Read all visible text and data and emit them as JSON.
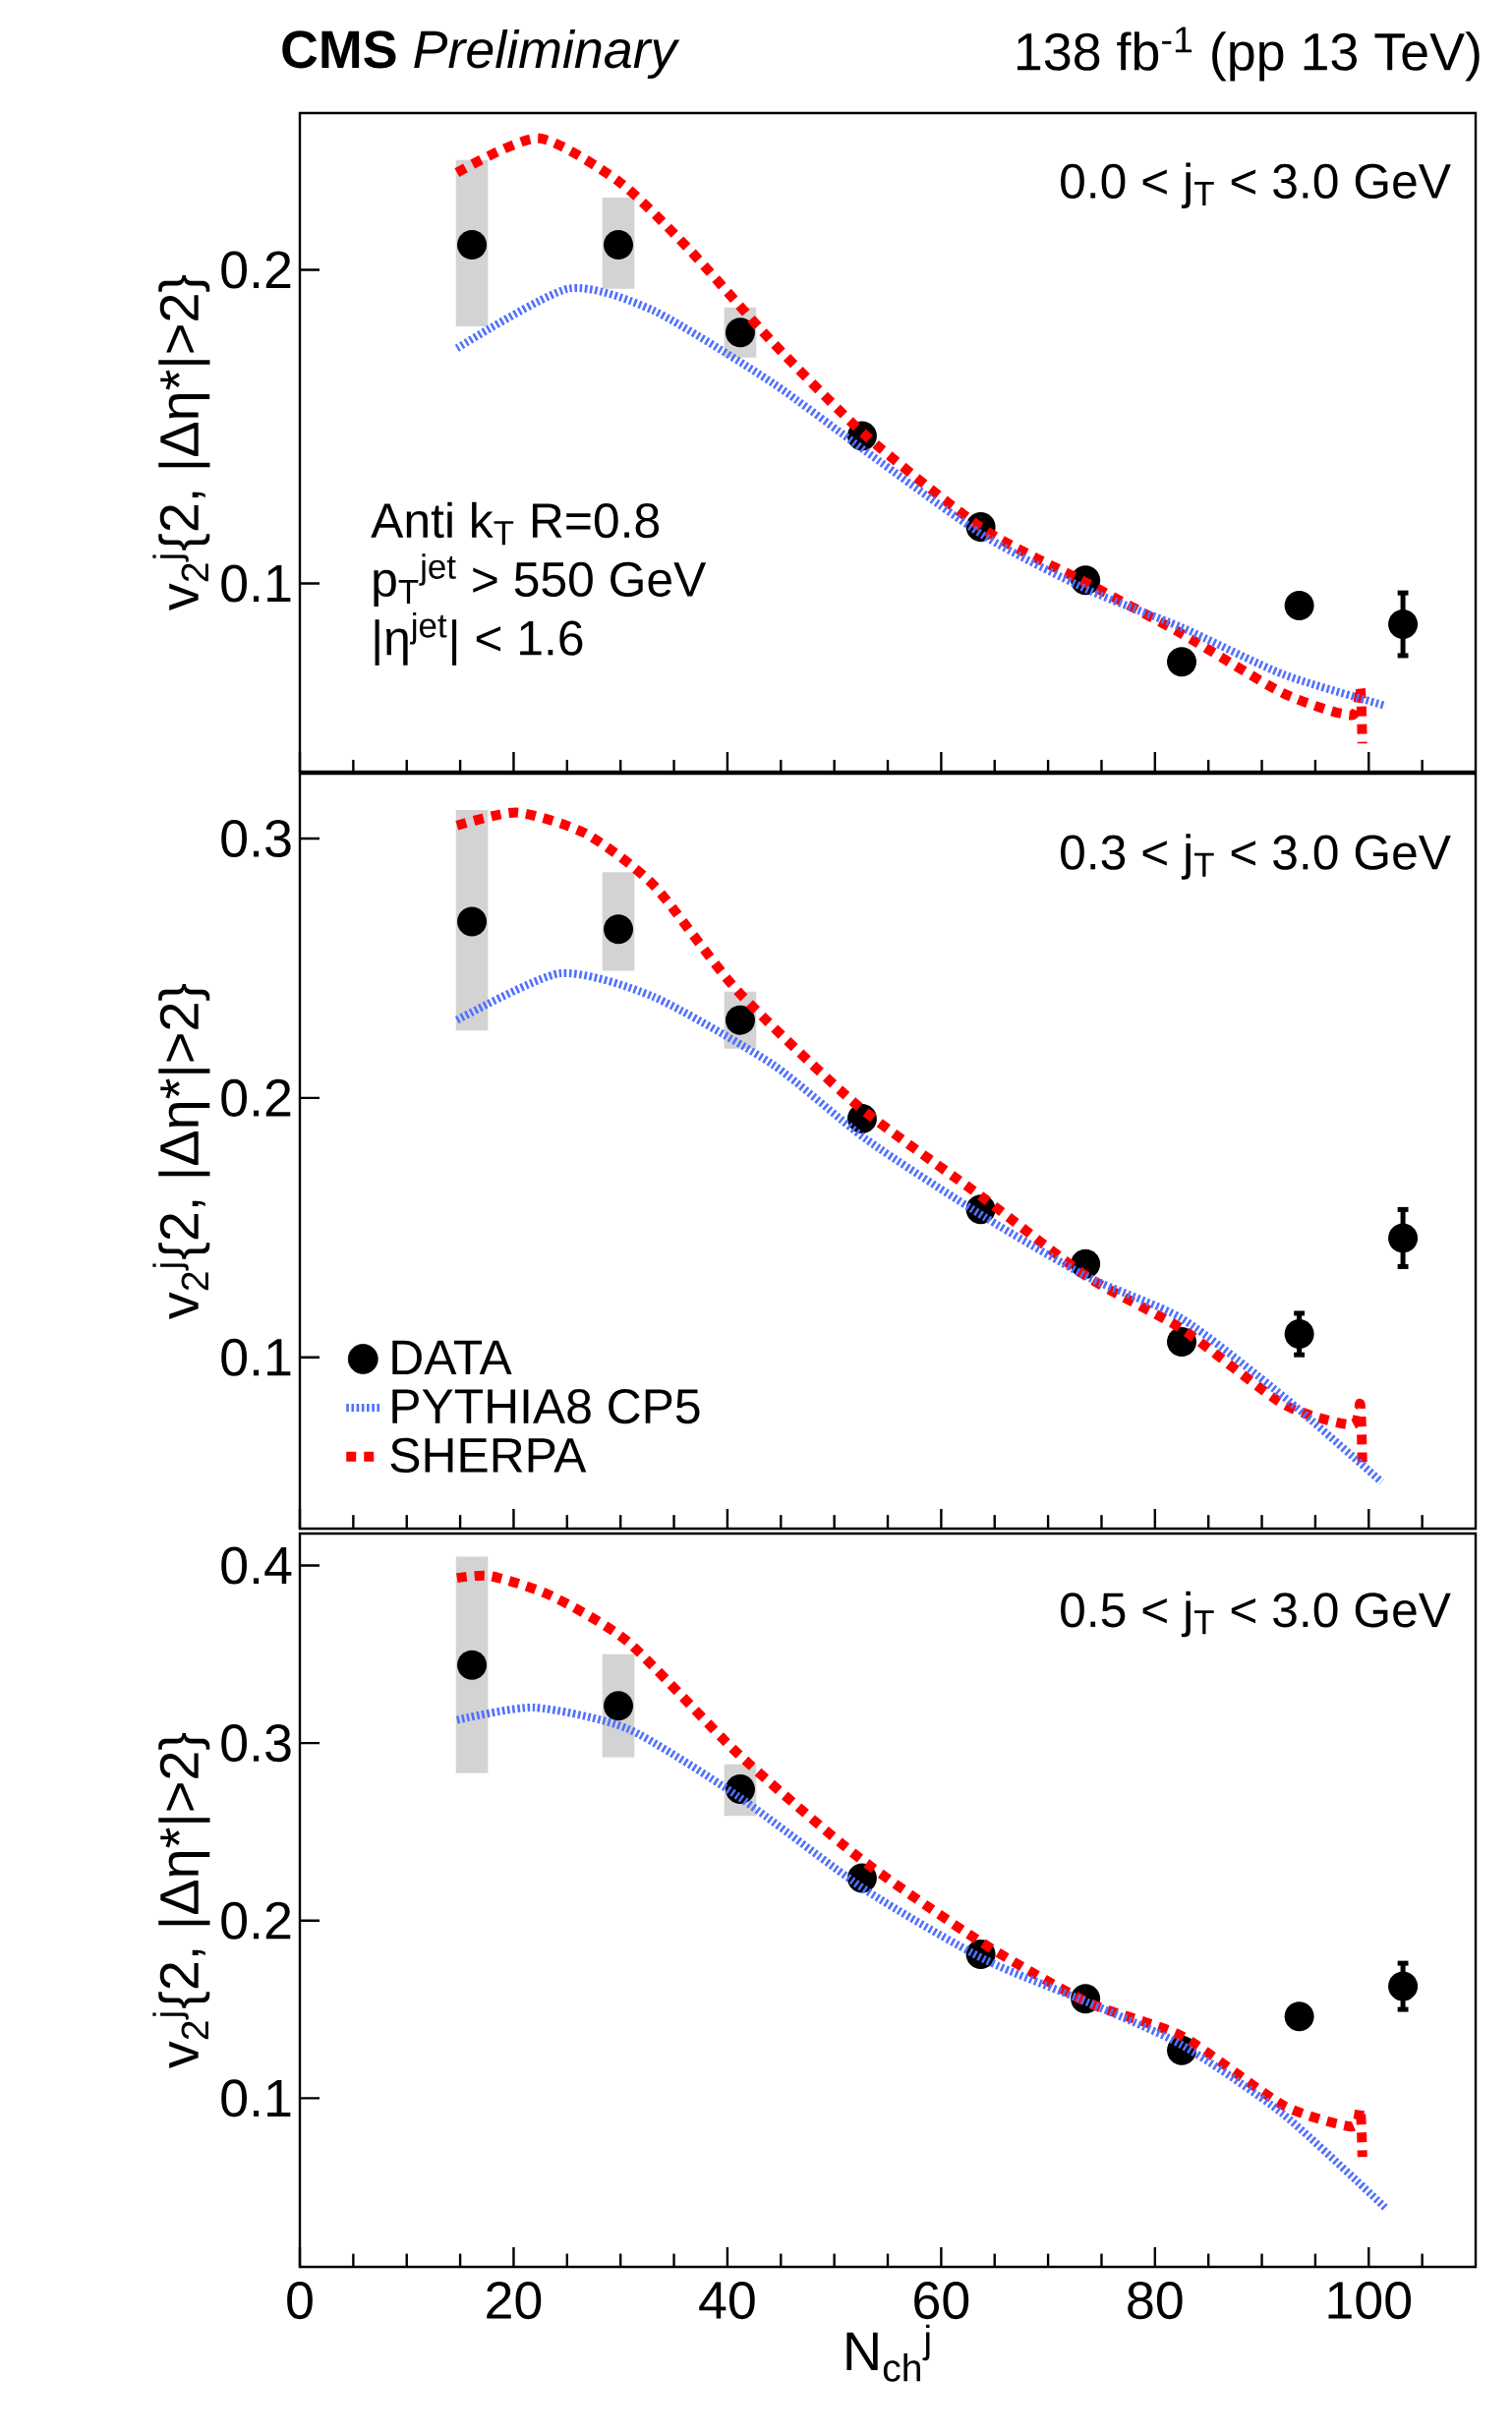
{
  "chart_data": [
    {
      "type": "scatter",
      "title": "**CMS** *Preliminary*",
      "subtitle": "138 fb$^{-1}$ (pp 13 TeV)",
      "ylabel": "v$_{2}$$^{j}${2, |Δη*|>2}",
      "annotations": [
        "0.0 < j$_{T}$ < 3.0 GeV",
        "Anti k$_{T}$ R=0.8",
        "p$_{T}$$^{jet}$ > 550 GeV",
        "|η$^{jet}$| < 1.6"
      ],
      "xlim": [
        0,
        110
      ],
      "xticks": [
        0,
        {
          "value": 5,
          "label": null
        },
        {
          "value": 10,
          "label": null
        },
        {
          "value": 15,
          "label": null
        },
        20,
        {
          "value": 25,
          "label": null
        },
        {
          "value": 30,
          "label": null
        },
        {
          "value": 35,
          "label": null
        },
        40,
        {
          "value": 45,
          "label": null
        },
        {
          "value": 50,
          "label": null
        },
        {
          "value": 55,
          "label": null
        },
        60,
        {
          "value": 65,
          "label": null
        },
        {
          "value": 70,
          "label": null
        },
        {
          "value": 75,
          "label": null
        },
        80,
        {
          "value": 85,
          "label": null
        },
        {
          "value": 90,
          "label": null
        },
        {
          "value": 95,
          "label": null
        },
        100,
        {
          "value": 105,
          "label": null
        }
      ],
      "ylim": [
        0.04,
        0.25
      ],
      "yticks": [
        0.1,
        0.2
      ],
      "tick_labels": "y",
      "series": [
        {
          "type": "bar",
          "color": "#d3d3d3",
          "x": [
            16.1,
            29.8,
            41.2
          ],
          "base": [
            0.182,
            0.194,
            0.172
          ],
          "values": [
            0.053,
            0.029,
            0.016
          ]
        },
        {
          "type": "scatter",
          "color": "#000000",
          "marker": "circle",
          "x": [
            16.1,
            29.8,
            41.2,
            52.6,
            63.7,
            73.5,
            82.5,
            93.5,
            103.2
          ],
          "values": [
            0.208,
            0.208,
            0.18,
            0.147,
            0.118,
            0.101,
            0.075,
            0.093,
            0.087
          ],
          "errors": [
            null,
            null,
            null,
            null,
            null,
            null,
            null,
            null,
            0.01
          ]
        },
        {
          "type": "line",
          "color": "#5070ff",
          "line_style": "dotted",
          "x": [
            14.7,
            25.1,
            33.1,
            44.2,
            53.0,
            64.1,
            73.7,
            82.5,
            92.0,
            101.6
          ],
          "values": [
            0.175,
            0.194,
            0.187,
            0.164,
            0.142,
            0.115,
            0.098,
            0.086,
            0.071,
            0.061
          ]
        },
        {
          "type": "line",
          "color": "#ff0000",
          "line_style": "dashed",
          "x": [
            14.7,
            22.3,
            29.9,
            36.3,
            44.2,
            53.0,
            64.1,
            73.7,
            82.5,
            92.0,
            98.4,
            99.2,
            99.4
          ],
          "values": [
            0.231,
            0.242,
            0.228,
            0.207,
            0.177,
            0.147,
            0.117,
            0.1,
            0.084,
            0.065,
            0.058,
            0.067,
            0.049
          ]
        }
      ]
    },
    {
      "type": "scatter",
      "ylabel": "v$_{2}$$^{j}${2, |Δη*|>2}",
      "annotations": [
        "0.3 < j$_{T}$ < 3.0 GeV"
      ],
      "xlim": [
        0,
        110
      ],
      "xticks": [
        0,
        {
          "value": 5,
          "label": null
        },
        {
          "value": 10,
          "label": null
        },
        {
          "value": 15,
          "label": null
        },
        20,
        {
          "value": 25,
          "label": null
        },
        {
          "value": 30,
          "label": null
        },
        {
          "value": 35,
          "label": null
        },
        40,
        {
          "value": 45,
          "label": null
        },
        {
          "value": 50,
          "label": null
        },
        {
          "value": 55,
          "label": null
        },
        60,
        {
          "value": 65,
          "label": null
        },
        {
          "value": 70,
          "label": null
        },
        {
          "value": 75,
          "label": null
        },
        80,
        {
          "value": 85,
          "label": null
        },
        {
          "value": 90,
          "label": null
        },
        {
          "value": 95,
          "label": null
        },
        100,
        {
          "value": 105,
          "label": null
        }
      ],
      "ylim": [
        0.034,
        0.325
      ],
      "yticks": [
        0.1,
        0.2,
        0.3
      ],
      "tick_labels": "y",
      "legend": "bottom left",
      "series": [
        {
          "type": "bar",
          "color": "#d3d3d3",
          "x": [
            16.1,
            29.8,
            41.2
          ],
          "base": [
            0.226,
            0.249,
            0.219
          ],
          "values": [
            0.085,
            0.038,
            0.022
          ]
        },
        {
          "type": "scatter",
          "name": "DATA",
          "color": "#000000",
          "marker": "circle",
          "x": [
            16.1,
            29.8,
            41.2,
            52.6,
            63.7,
            73.5,
            82.5,
            93.5,
            103.2
          ],
          "values": [
            0.268,
            0.265,
            0.23,
            0.192,
            0.157,
            0.136,
            0.106,
            0.109,
            0.146
          ],
          "errors": [
            null,
            null,
            null,
            null,
            null,
            null,
            null,
            0.008,
            0.011
          ]
        },
        {
          "type": "line",
          "name": "PYTHIA8 CP5",
          "color": "#5070ff",
          "line_style": "dotted",
          "x": [
            14.7,
            24.3,
            33.1,
            44.2,
            53.0,
            64.1,
            73.7,
            82.5,
            92.0,
            101.2
          ],
          "values": [
            0.23,
            0.248,
            0.239,
            0.213,
            0.184,
            0.154,
            0.131,
            0.115,
            0.085,
            0.052
          ]
        },
        {
          "type": "line",
          "name": "SHERPA",
          "color": "#ff0000",
          "line_style": "dashed",
          "x": [
            14.7,
            20.3,
            26.7,
            33.1,
            41.0,
            52.2,
            64.1,
            73.7,
            82.5,
            92.0,
            98.4,
            99.2,
            99.4
          ],
          "values": [
            0.305,
            0.31,
            0.302,
            0.282,
            0.241,
            0.197,
            0.161,
            0.131,
            0.111,
            0.082,
            0.074,
            0.082,
            0.059
          ]
        }
      ]
    },
    {
      "type": "scatter",
      "ylabel": "v$_{2}$$^{j}${2, |Δη*|>2}",
      "xlabel": "N$_{ch}$$^{j}$",
      "annotations": [
        "0.5 < j$_{T}$ < 3.0 GeV"
      ],
      "xlim": [
        0,
        110
      ],
      "xticks": [
        0,
        {
          "value": 5,
          "label": null
        },
        {
          "value": 10,
          "label": null
        },
        {
          "value": 15,
          "label": null
        },
        20,
        {
          "value": 25,
          "label": null
        },
        {
          "value": 30,
          "label": null
        },
        {
          "value": 35,
          "label": null
        },
        40,
        {
          "value": 45,
          "label": null
        },
        {
          "value": 50,
          "label": null
        },
        {
          "value": 55,
          "label": null
        },
        60,
        {
          "value": 65,
          "label": null
        },
        {
          "value": 70,
          "label": null
        },
        {
          "value": 75,
          "label": null
        },
        80,
        {
          "value": 85,
          "label": null
        },
        {
          "value": 90,
          "label": null
        },
        {
          "value": 95,
          "label": null
        },
        100,
        {
          "value": 105,
          "label": null
        }
      ],
      "ylim": [
        0.005,
        0.418
      ],
      "yticks": [
        0.1,
        0.2,
        0.3,
        0.4
      ],
      "series": [
        {
          "type": "bar",
          "color": "#d3d3d3",
          "x": [
            16.1,
            29.8,
            41.2
          ],
          "base": [
            0.283,
            0.292,
            0.259
          ],
          "values": [
            0.122,
            0.058,
            0.029
          ]
        },
        {
          "type": "scatter",
          "color": "#000000",
          "marker": "circle",
          "x": [
            16.1,
            29.8,
            41.2,
            52.6,
            63.7,
            73.5,
            82.5,
            93.5,
            103.2
          ],
          "values": [
            0.344,
            0.321,
            0.274,
            0.224,
            0.181,
            0.156,
            0.127,
            0.146,
            0.163
          ],
          "errors": [
            null,
            null,
            null,
            null,
            null,
            null,
            null,
            null,
            0.013
          ]
        },
        {
          "type": "line",
          "color": "#5070ff",
          "line_style": "dotted",
          "x": [
            14.7,
            21.9,
            30.7,
            41.0,
            53.0,
            64.1,
            73.7,
            82.5,
            92.0,
            101.6
          ],
          "values": [
            0.313,
            0.32,
            0.308,
            0.27,
            0.217,
            0.178,
            0.154,
            0.13,
            0.091,
            0.038
          ]
        },
        {
          "type": "line",
          "color": "#ff0000",
          "line_style": "dashed",
          "x": [
            14.7,
            17.9,
            23.5,
            30.7,
            41.0,
            52.2,
            63.7,
            73.7,
            82.5,
            92.0,
            98.4,
            99.2,
            99.4
          ],
          "values": [
            0.393,
            0.394,
            0.383,
            0.357,
            0.294,
            0.236,
            0.188,
            0.154,
            0.135,
            0.096,
            0.084,
            0.094,
            0.067
          ]
        }
      ]
    }
  ]
}
